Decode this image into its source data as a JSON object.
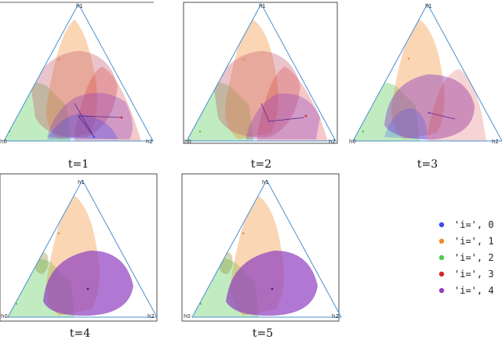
{
  "vertex_labels": {
    "top": "h1",
    "left": "h0",
    "right": "h2"
  },
  "colors": {
    "0": "#3b4cf0",
    "1": "#f08a2a",
    "2": "#4ec94e",
    "3": "#d62728",
    "4": "#8e3fbf",
    "triangle_edge": "#4a90d0"
  },
  "panels": [
    {
      "caption": "t=1"
    },
    {
      "caption": "t=2"
    },
    {
      "caption": "t=3"
    },
    {
      "caption": "t=4"
    },
    {
      "caption": "t=5"
    }
  ],
  "legend": [
    {
      "label": "'i=', 0",
      "color": "#3b4cf0"
    },
    {
      "label": "'i=', 1",
      "color": "#f08a2a"
    },
    {
      "label": "'i=', 2",
      "color": "#4ec94e"
    },
    {
      "label": "'i=', 3",
      "color": "#d62728"
    },
    {
      "label": "'i=', 4",
      "color": "#8e3fbf"
    }
  ]
}
